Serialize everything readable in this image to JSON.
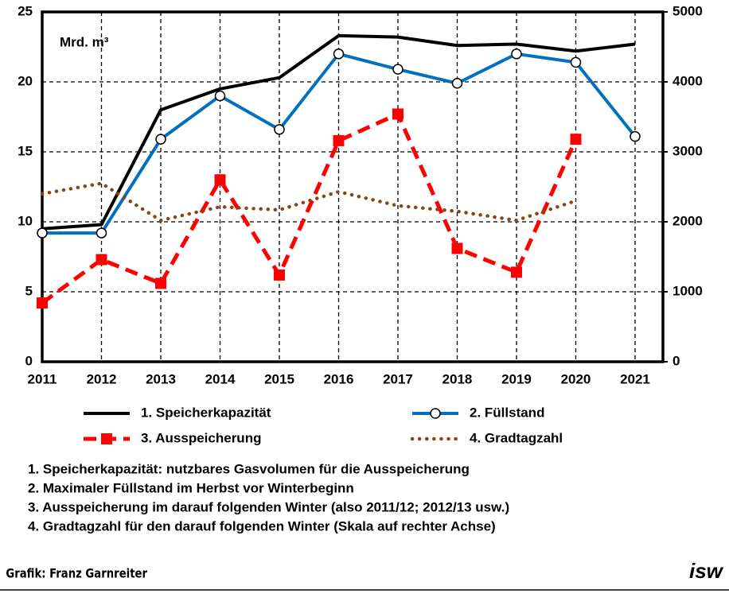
{
  "chart_data": {
    "type": "line",
    "unit_label": "Mrd. m³",
    "x": [
      2011,
      2012,
      2013,
      2014,
      2015,
      2016,
      2017,
      2018,
      2019,
      2020,
      2021
    ],
    "xlim": [
      2011,
      2021.47
    ],
    "xticks": [
      2011,
      2012,
      2013,
      2014,
      2015,
      2016,
      2017,
      2018,
      2019,
      2020,
      2021
    ],
    "ylim": [
      0,
      25
    ],
    "yticks": [
      0,
      5,
      10,
      15,
      20,
      25
    ],
    "y2lim": [
      0,
      5000
    ],
    "y2ticks": [
      0,
      1000,
      2000,
      3000,
      4000,
      5000
    ],
    "grid": true,
    "series": [
      {
        "name": "1. Speicherkapazität",
        "color": "#000000",
        "line_style": "solid",
        "values": [
          9.5,
          9.8,
          18.0,
          19.5,
          20.3,
          23.3,
          23.2,
          22.6,
          22.7,
          22.2,
          22.7
        ]
      },
      {
        "name": "2. Füllstand",
        "color": "#0070c0",
        "line_style": "solid",
        "marker": "circle",
        "values": [
          9.2,
          9.2,
          15.9,
          19.0,
          16.6,
          22.0,
          20.9,
          19.9,
          22.0,
          21.4,
          16.1
        ]
      },
      {
        "name": "3. Ausspeicherung",
        "color": "#ff0000",
        "line_style": "dashed",
        "marker": "square",
        "values": [
          4.2,
          7.3,
          5.6,
          13.0,
          6.2,
          15.8,
          17.7,
          8.1,
          6.4,
          15.9,
          null
        ]
      },
      {
        "name": "4. Gradtagzahl",
        "color": "#8b4513",
        "line_style": "dotted",
        "axis": "y2",
        "values": [
          2400,
          2550,
          2020,
          2215,
          2170,
          2430,
          2230,
          2150,
          2020,
          2300,
          null
        ]
      }
    ]
  },
  "notes": [
    "1. Speicherkapazität: nutzbares Gasvolumen für die Ausspeicherung",
    "2. Maximaler Füllstand im Herbst vor Winterbeginn",
    "3. Ausspeicherung im darauf folgenden Winter (also 2011/12; 2012/13 usw.)",
    "4. Gradtagzahl für den darauf folgenden Winter (Skala auf rechter Achse)"
  ],
  "footer": {
    "credit": "Grafik: Franz Garnreiter",
    "logo": "isw"
  }
}
